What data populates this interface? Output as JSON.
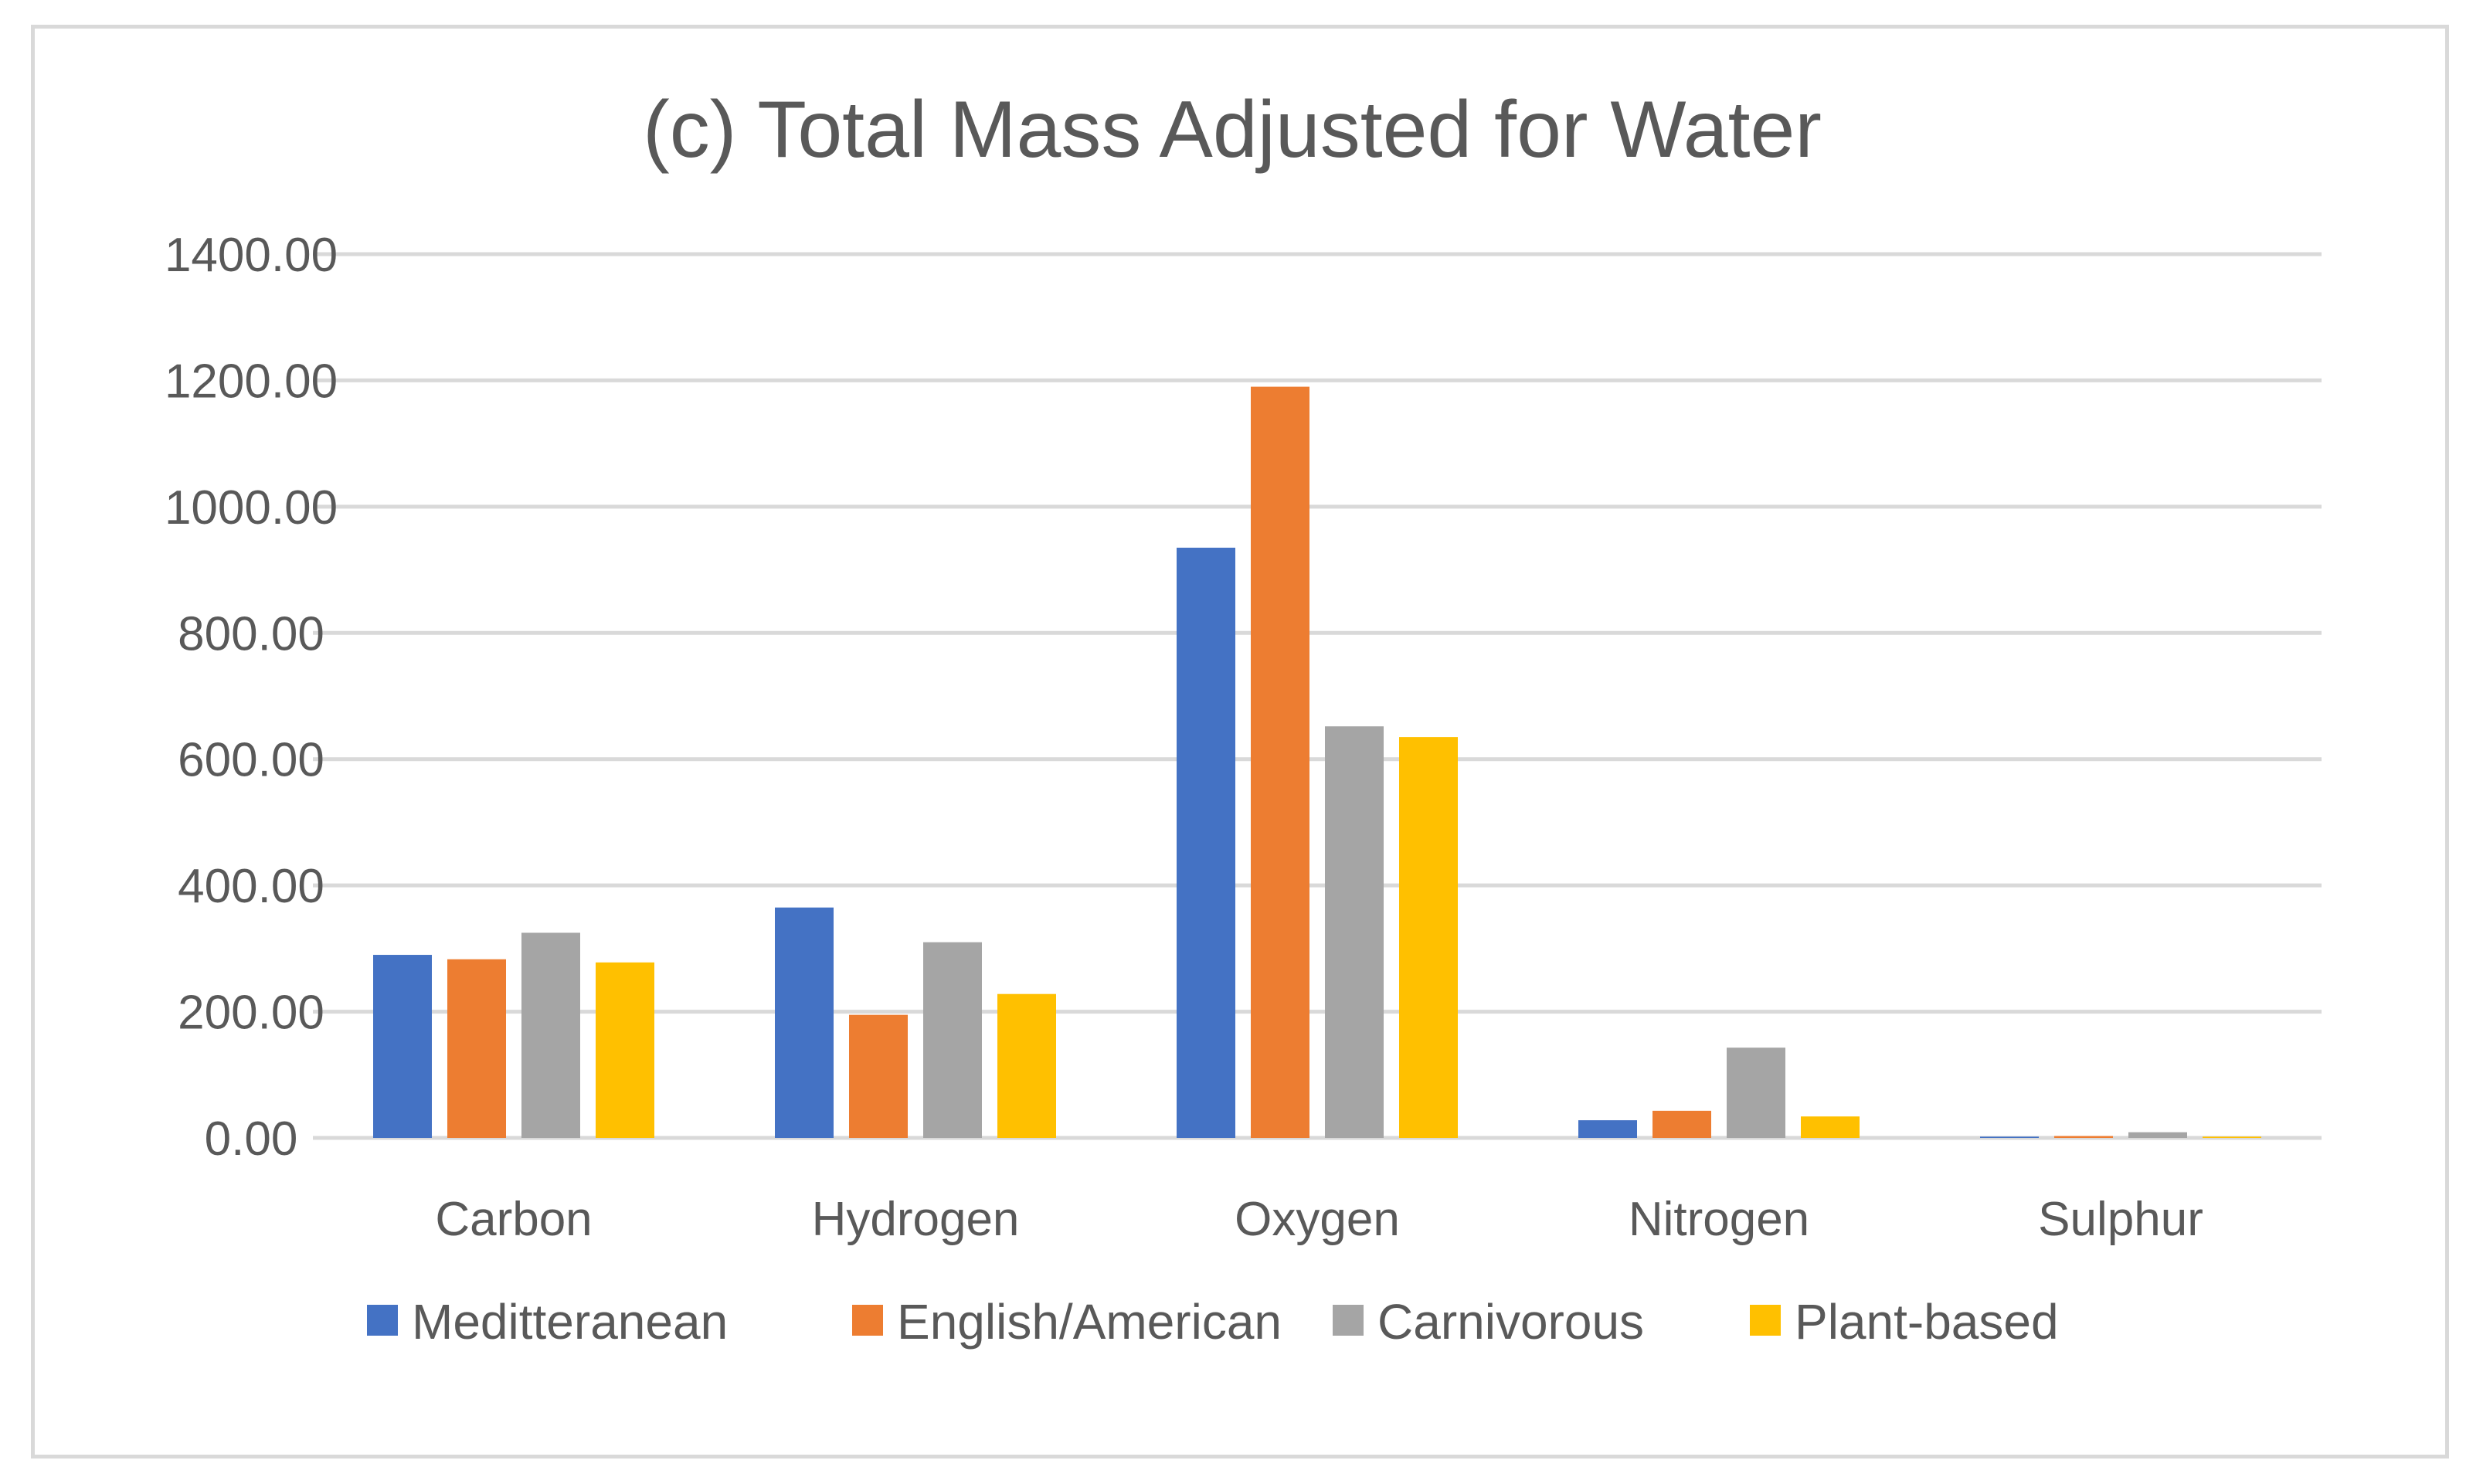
{
  "chart_data": {
    "type": "bar",
    "title": "(c) Total Mass Adjusted for Water",
    "xlabel": "",
    "ylabel": "",
    "ylim": [
      0,
      1400
    ],
    "ytick_values": [
      0,
      200,
      400,
      600,
      800,
      1000,
      1200,
      1400
    ],
    "ytick_labels": [
      "0.00",
      "200.00",
      "400.00",
      "600.00",
      "800.00",
      "1000.00",
      "1200.00",
      "1400.00"
    ],
    "grid": true,
    "legend_position": "bottom",
    "categories": [
      "Carbon",
      "Hydrogen",
      "Oxygen",
      "Nitrogen",
      "Sulphur"
    ],
    "series": [
      {
        "name": "Meditteranean",
        "color": "#4472c4",
        "values": [
          290,
          365,
          935,
          28,
          2
        ]
      },
      {
        "name": "English/American",
        "color": "#ed7d31",
        "values": [
          283,
          195,
          1190,
          43,
          3
        ]
      },
      {
        "name": "Carnivorous",
        "color": "#a5a5a5",
        "values": [
          325,
          310,
          652,
          143,
          9
        ]
      },
      {
        "name": "Plant-based",
        "color": "#ffc000",
        "values": [
          278,
          228,
          635,
          34,
          2
        ]
      }
    ]
  }
}
